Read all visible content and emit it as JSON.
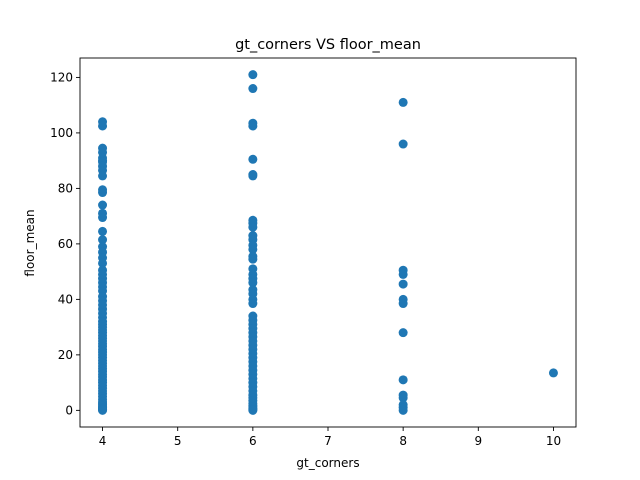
{
  "chart_data": {
    "type": "scatter",
    "title": "gt_corners VS floor_mean",
    "xlabel": "gt_corners",
    "ylabel": "floor_mean",
    "xlim": [
      3.7,
      10.3
    ],
    "ylim": [
      -6.0,
      127.0
    ],
    "xticks": [
      4,
      5,
      6,
      7,
      8,
      9,
      10
    ],
    "yticks": [
      0,
      20,
      40,
      60,
      80,
      100,
      120
    ],
    "grid": false,
    "marker_color": "#1f77b4",
    "series": [
      {
        "x": 4,
        "y": [
          104,
          102.5,
          94.5,
          93,
          91,
          90,
          89.5,
          88,
          86.5,
          84.5,
          79.5,
          78.5,
          74,
          71,
          69.5,
          64.5,
          61.5,
          59,
          57,
          55,
          53,
          50.5,
          49,
          47.5,
          46,
          44.5,
          43,
          41,
          39.5,
          38,
          36.5,
          35,
          33.5,
          32,
          31,
          30,
          29,
          28,
          27,
          26,
          25,
          24,
          23,
          22,
          21,
          20,
          19,
          18,
          17,
          16,
          15,
          14,
          13,
          12,
          11,
          10,
          9,
          8,
          7,
          6,
          5,
          4,
          3,
          2.5,
          2,
          1.5,
          1,
          0.7,
          0.4,
          0.2,
          0
        ]
      },
      {
        "x": 6,
        "y": [
          121,
          116,
          103.5,
          102.5,
          90.5,
          85,
          84.5,
          68.5,
          67.5,
          66,
          63,
          61.5,
          59.5,
          58,
          55.5,
          54.5,
          51,
          49,
          47.5,
          46,
          43.5,
          42,
          40,
          38.5,
          34,
          32.5,
          31,
          29.5,
          28,
          26.5,
          25,
          23.5,
          22,
          20.5,
          19,
          17.5,
          16,
          14.5,
          13,
          11.5,
          10,
          8.5,
          7,
          5.5,
          4.5,
          3.5,
          2.5,
          1.8,
          1.2,
          0.7,
          0.3,
          0
        ]
      },
      {
        "x": 8,
        "y": [
          111,
          96,
          50.5,
          49,
          45.5,
          40,
          38.5,
          28,
          11,
          5.5,
          4.5,
          2,
          1,
          0
        ]
      },
      {
        "x": 10,
        "y": [
          13.5
        ]
      }
    ]
  }
}
